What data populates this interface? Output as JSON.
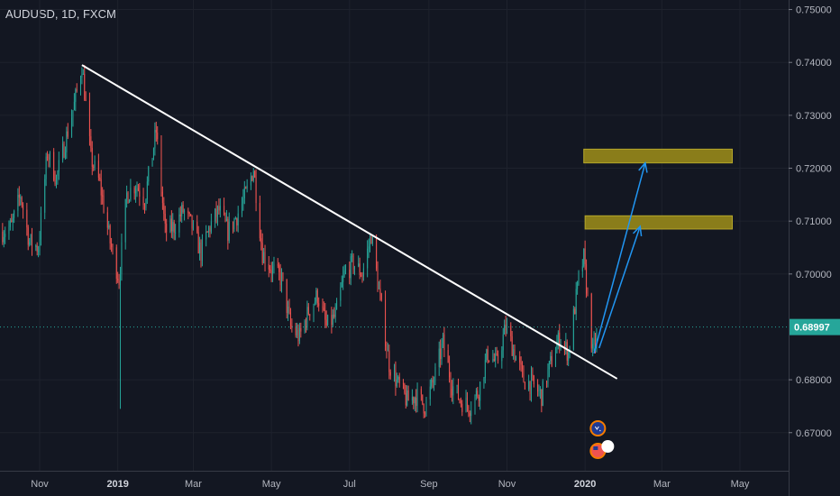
{
  "symbol_title": "AUDUSD, 1D, FXCM",
  "colors": {
    "background": "#131722",
    "up": "#26a69a",
    "down": "#ef5350",
    "trendline": "#ffffff",
    "arrow": "#2196f3",
    "zone_fill": "#8a7d1a",
    "zone_border": "#b5a62a",
    "current_price_bg": "#26a69a"
  },
  "chart_data": {
    "type": "candlestick",
    "y_ticks": [
      "0.75000",
      "0.74000",
      "0.73000",
      "0.72000",
      "0.71000",
      "0.70000",
      "0.68000",
      "0.67000"
    ],
    "y_tick_values": [
      0.75,
      0.74,
      0.73,
      0.72,
      0.71,
      0.7,
      0.68,
      0.67
    ],
    "ylim": [
      0.6628,
      0.7518
    ],
    "current_price": "0.68997",
    "current_price_value": 0.68997,
    "x_ticks": [
      {
        "label": "Nov",
        "year": false
      },
      {
        "label": "2019",
        "year": true
      },
      {
        "label": "Mar",
        "year": false
      },
      {
        "label": "May",
        "year": false
      },
      {
        "label": "Jul",
        "year": false
      },
      {
        "label": "Sep",
        "year": false
      },
      {
        "label": "Nov",
        "year": false
      },
      {
        "label": "2020",
        "year": true
      },
      {
        "label": "Mar",
        "year": false
      },
      {
        "label": "May",
        "year": false
      }
    ],
    "x_tick_dates": [
      "2018-11-01",
      "2019-01-01",
      "2019-03-01",
      "2019-05-01",
      "2019-07-01",
      "2019-09-01",
      "2019-11-01",
      "2020-01-01",
      "2020-03-01",
      "2020-05-01"
    ],
    "price_path": [
      [
        "2018-10-03",
        0.708
      ],
      [
        "2018-10-10",
        0.709
      ],
      [
        "2018-10-17",
        0.715
      ],
      [
        "2018-10-24",
        0.706
      ],
      [
        "2018-10-31",
        0.705
      ],
      [
        "2018-11-07",
        0.723
      ],
      [
        "2018-11-14",
        0.718
      ],
      [
        "2018-11-21",
        0.725
      ],
      [
        "2018-11-28",
        0.732
      ],
      [
        "2018-12-04",
        0.7395
      ],
      [
        "2018-12-11",
        0.722
      ],
      [
        "2018-12-18",
        0.717
      ],
      [
        "2018-12-26",
        0.706
      ],
      [
        "2019-01-02",
        0.699
      ],
      [
        "2019-01-08",
        0.715
      ],
      [
        "2019-01-15",
        0.717
      ],
      [
        "2019-01-22",
        0.714
      ],
      [
        "2019-01-31",
        0.727
      ],
      [
        "2019-02-07",
        0.708
      ],
      [
        "2019-02-14",
        0.709
      ],
      [
        "2019-02-21",
        0.712
      ],
      [
        "2019-02-28",
        0.709
      ],
      [
        "2019-03-07",
        0.704
      ],
      [
        "2019-03-14",
        0.709
      ],
      [
        "2019-03-21",
        0.712
      ],
      [
        "2019-03-28",
        0.708
      ],
      [
        "2019-04-04",
        0.711
      ],
      [
        "2019-04-11",
        0.715
      ],
      [
        "2019-04-17",
        0.72
      ],
      [
        "2019-04-24",
        0.704
      ],
      [
        "2019-05-01",
        0.701
      ],
      [
        "2019-05-09",
        0.699
      ],
      [
        "2019-05-16",
        0.69
      ],
      [
        "2019-05-23",
        0.688
      ],
      [
        "2019-05-30",
        0.693
      ],
      [
        "2019-06-06",
        0.696
      ],
      [
        "2019-06-13",
        0.69
      ],
      [
        "2019-06-20",
        0.692
      ],
      [
        "2019-06-27",
        0.7
      ],
      [
        "2019-07-04",
        0.702
      ],
      [
        "2019-07-11",
        0.7
      ],
      [
        "2019-07-18",
        0.7075
      ],
      [
        "2019-07-25",
        0.695
      ],
      [
        "2019-08-01",
        0.683
      ],
      [
        "2019-08-08",
        0.679
      ],
      [
        "2019-08-15",
        0.676
      ],
      [
        "2019-08-22",
        0.677
      ],
      [
        "2019-08-29",
        0.675
      ],
      [
        "2019-09-05",
        0.68
      ],
      [
        "2019-09-12",
        0.687
      ],
      [
        "2019-09-19",
        0.679
      ],
      [
        "2019-09-26",
        0.676
      ],
      [
        "2019-10-03",
        0.675
      ],
      [
        "2019-10-10",
        0.678
      ],
      [
        "2019-10-17",
        0.685
      ],
      [
        "2019-10-24",
        0.683
      ],
      [
        "2019-10-31",
        0.69
      ],
      [
        "2019-11-07",
        0.685
      ],
      [
        "2019-11-14",
        0.68
      ],
      [
        "2019-11-21",
        0.679
      ],
      [
        "2019-11-28",
        0.677
      ],
      [
        "2019-12-05",
        0.683
      ],
      [
        "2019-12-12",
        0.688
      ],
      [
        "2019-12-19",
        0.685
      ],
      [
        "2019-12-27",
        0.699
      ],
      [
        "2019-12-31",
        0.703
      ],
      [
        "2020-01-07",
        0.685
      ],
      [
        "2020-01-10",
        0.688
      ]
    ],
    "trendline": {
      "from": [
        "2018-12-04",
        0.7395
      ],
      "to": [
        "2020-01-26",
        0.6802
      ]
    },
    "zones": [
      {
        "from": "2019-12-31",
        "to": "2020-04-25",
        "top": 0.7236,
        "bottom": 0.721
      },
      {
        "from": "2020-01-01",
        "to": "2020-04-25",
        "top": 0.711,
        "bottom": 0.7085
      }
    ],
    "arrows": [
      {
        "from": [
          "2020-01-08",
          0.685
        ],
        "to": [
          "2020-02-17",
          0.721
        ]
      },
      {
        "from": [
          "2020-01-12",
          0.686
        ],
        "to": [
          "2020-02-13",
          0.709
        ]
      }
    ]
  }
}
